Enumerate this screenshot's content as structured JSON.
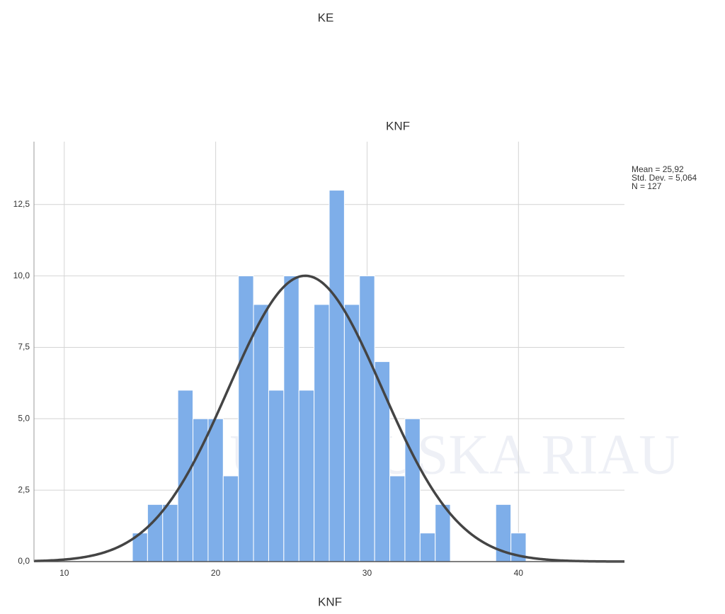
{
  "page_heading": "KE",
  "watermark": "UIN SUSKA RIAU",
  "chart_data": {
    "type": "histogram",
    "title": "KNF",
    "x_label": "KNF",
    "bins": [
      14.5,
      15.5,
      16.5,
      17.5,
      18.5,
      19.5,
      20.5,
      21.5,
      22.5,
      23.5,
      24.5,
      25.5,
      26.5,
      27.5,
      28.5,
      29.5,
      30.5,
      31.5,
      32.5,
      33.5,
      34.5,
      35.5,
      36.5,
      37.5,
      38.5,
      39.5,
      40.5
    ],
    "values": [
      1,
      2,
      2,
      6,
      5,
      5,
      3,
      10,
      9,
      6,
      10,
      6,
      9,
      13,
      9,
      10,
      7,
      3,
      5,
      1,
      2,
      0,
      0,
      0,
      2,
      1
    ],
    "color": "#7eaee9",
    "curve_color": "#444444",
    "stats": [
      {
        "value": 25.92,
        "label": "Mean = 25,92"
      },
      {
        "value": 5.064,
        "label": "Std. Dev. = 5,064"
      },
      {
        "value": 127,
        "label": "N = 127"
      }
    ],
    "xlim": [
      8,
      47
    ],
    "xticks": [
      10,
      20,
      30,
      40
    ],
    "ylim": [
      0,
      14.7
    ],
    "yticks": [
      {
        "value": 0,
        "label": "0,0"
      },
      {
        "value": 2.5,
        "label": "2,5"
      },
      {
        "value": 5,
        "label": "5,0"
      },
      {
        "value": 7.5,
        "label": "7,5"
      },
      {
        "value": 10,
        "label": "10,0"
      },
      {
        "value": 12.5,
        "label": "12,5"
      }
    ],
    "grid": true
  }
}
